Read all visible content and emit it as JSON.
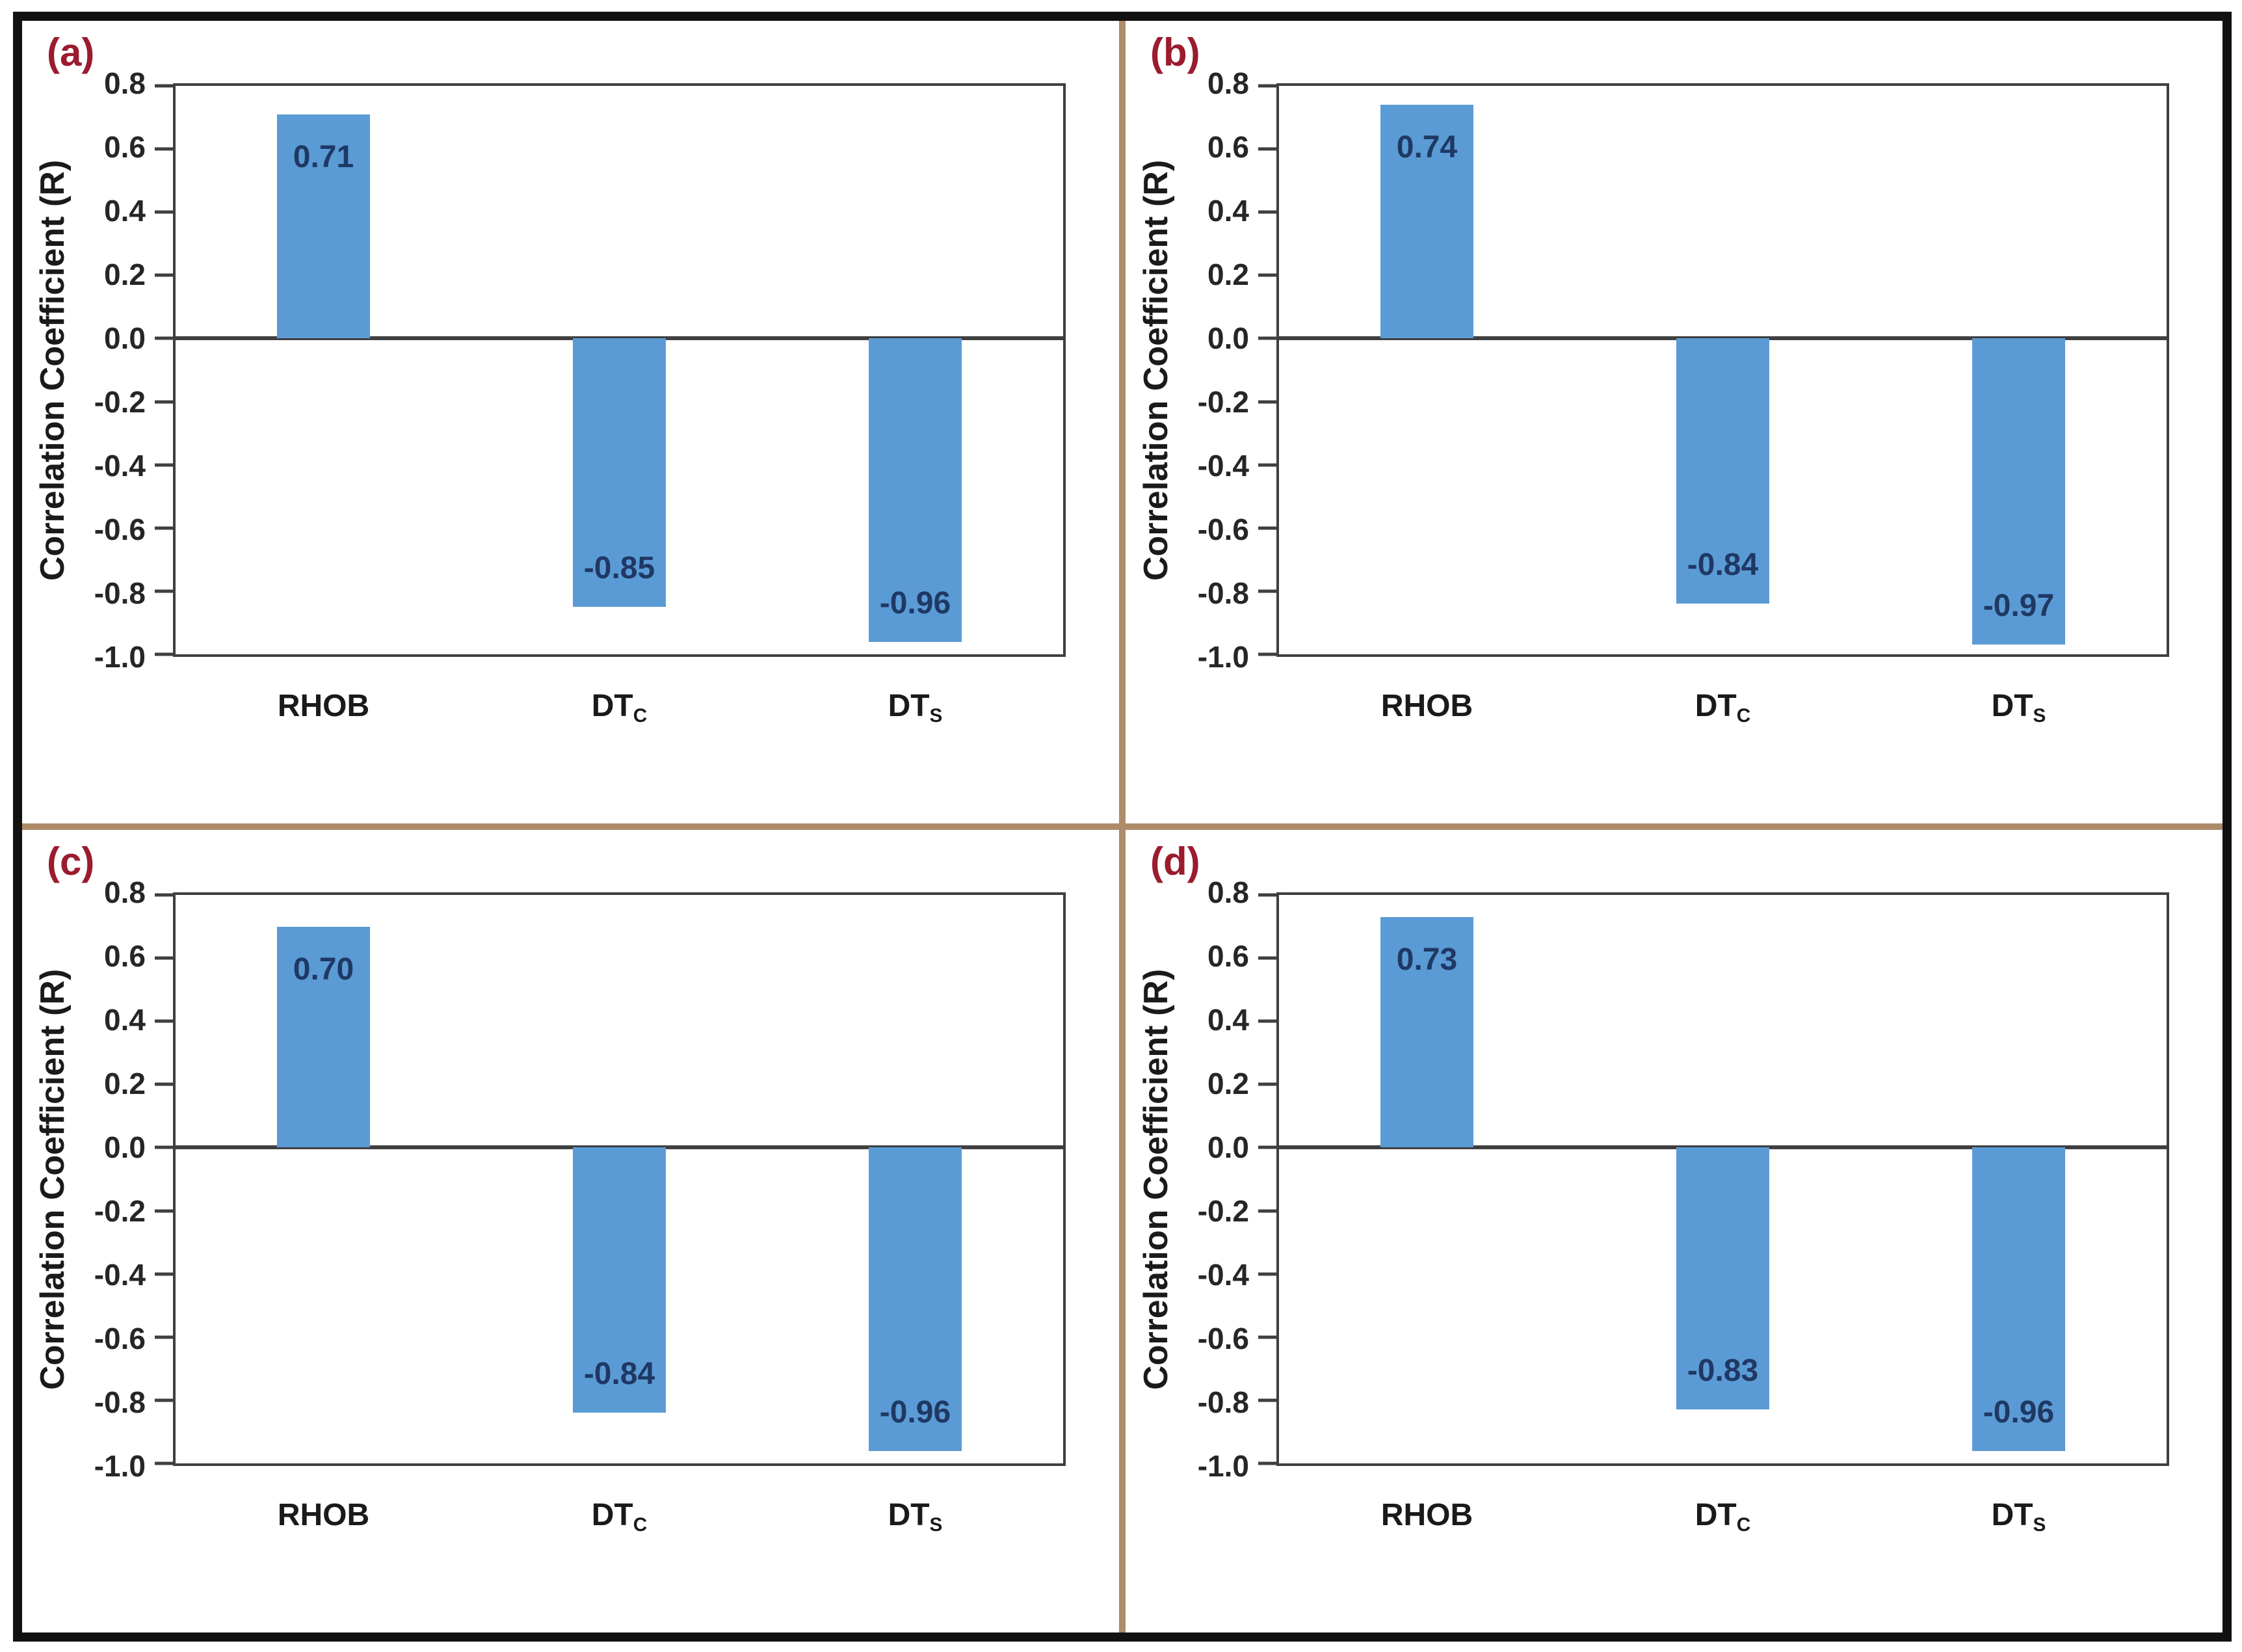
{
  "figure": {
    "background": "#ffffff",
    "outer_border_color": "#111111",
    "divider_color": "#ae8c6a"
  },
  "styles": {
    "bar_color": "#5b9bd5",
    "data_label_color": "#1f3864",
    "panel_label_color": "#9b1b2f",
    "axis_line_color": "#3f3f3f",
    "tick_text_color": "#262626"
  },
  "chart_data": [
    {
      "type": "bar",
      "panel_label": "(a)",
      "title": "",
      "ylabel": "Correlation Coefficient (R)",
      "xlabel": "",
      "ylim": [
        -1.0,
        0.8
      ],
      "ytick_step": 0.2,
      "yticks": [
        "0.8",
        "0.6",
        "0.4",
        "0.2",
        "0.0",
        "-0.2",
        "-0.4",
        "-0.6",
        "-0.8",
        "-1.0"
      ],
      "grid": false,
      "legend": null,
      "categories": [
        {
          "base": "RHOB",
          "sub": ""
        },
        {
          "base": "DT",
          "sub": "C"
        },
        {
          "base": "DT",
          "sub": "S"
        }
      ],
      "values": [
        0.71,
        -0.85,
        -0.96
      ],
      "value_labels": [
        "0.71",
        "-0.85",
        "-0.96"
      ]
    },
    {
      "type": "bar",
      "panel_label": "(b)",
      "title": "",
      "ylabel": "Correlation Coefficient (R)",
      "xlabel": "",
      "ylim": [
        -1.0,
        0.8
      ],
      "ytick_step": 0.2,
      "yticks": [
        "0.8",
        "0.6",
        "0.4",
        "0.2",
        "0.0",
        "-0.2",
        "-0.4",
        "-0.6",
        "-0.8",
        "-1.0"
      ],
      "grid": false,
      "legend": null,
      "categories": [
        {
          "base": "RHOB",
          "sub": ""
        },
        {
          "base": "DT",
          "sub": "C"
        },
        {
          "base": "DT",
          "sub": "S"
        }
      ],
      "values": [
        0.74,
        -0.84,
        -0.97
      ],
      "value_labels": [
        "0.74",
        "-0.84",
        "-0.97"
      ]
    },
    {
      "type": "bar",
      "panel_label": "(c)",
      "title": "",
      "ylabel": "Correlation Coefficient (R)",
      "xlabel": "",
      "ylim": [
        -1.0,
        0.8
      ],
      "ytick_step": 0.2,
      "yticks": [
        "0.8",
        "0.6",
        "0.4",
        "0.2",
        "0.0",
        "-0.2",
        "-0.4",
        "-0.6",
        "-0.8",
        "-1.0"
      ],
      "grid": false,
      "legend": null,
      "categories": [
        {
          "base": "RHOB",
          "sub": ""
        },
        {
          "base": "DT",
          "sub": "C"
        },
        {
          "base": "DT",
          "sub": "S"
        }
      ],
      "values": [
        0.7,
        -0.84,
        -0.96
      ],
      "value_labels": [
        "0.70",
        "-0.84",
        "-0.96"
      ]
    },
    {
      "type": "bar",
      "panel_label": "(d)",
      "title": "",
      "ylabel": "Correlation Coefficient (R)",
      "xlabel": "",
      "ylim": [
        -1.0,
        0.8
      ],
      "ytick_step": 0.2,
      "yticks": [
        "0.8",
        "0.6",
        "0.4",
        "0.2",
        "0.0",
        "-0.2",
        "-0.4",
        "-0.6",
        "-0.8",
        "-1.0"
      ],
      "grid": false,
      "legend": null,
      "categories": [
        {
          "base": "RHOB",
          "sub": ""
        },
        {
          "base": "DT",
          "sub": "C"
        },
        {
          "base": "DT",
          "sub": "S"
        }
      ],
      "values": [
        0.73,
        -0.83,
        -0.96
      ],
      "value_labels": [
        "0.73",
        "-0.83",
        "-0.96"
      ]
    }
  ]
}
